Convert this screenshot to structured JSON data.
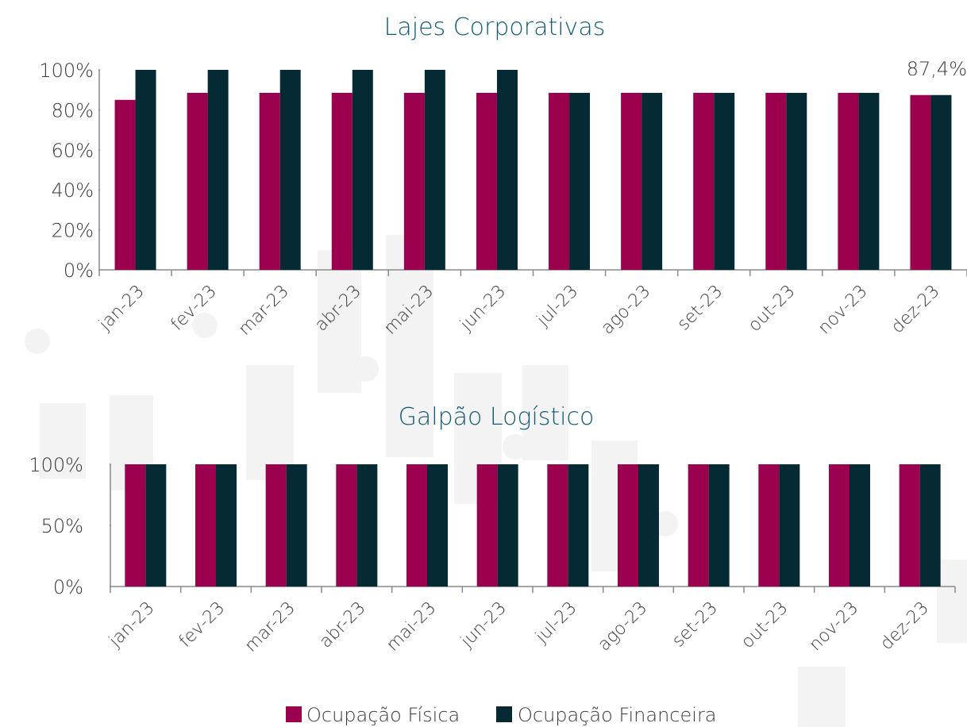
{
  "chart_data": [
    {
      "type": "bar",
      "title": "Lajes Corporativas",
      "categories": [
        "jan-23",
        "fev-23",
        "mar-23",
        "abr-23",
        "mai-23",
        "jun-23",
        "jul-23",
        "ago-23",
        "set-23",
        "out-23",
        "nov-23",
        "dez-23"
      ],
      "series": [
        {
          "name": "Ocupação Física",
          "color": "#9b004f",
          "values": [
            85,
            88.5,
            88.5,
            88.5,
            88.5,
            88.5,
            88.5,
            88.5,
            88.5,
            88.5,
            88.5,
            87.4
          ]
        },
        {
          "name": "Ocupação Financeira",
          "color": "#062a33",
          "values": [
            100,
            100,
            100,
            100,
            100,
            100,
            88.5,
            88.5,
            88.5,
            88.5,
            88.5,
            87.4
          ],
          "value_labels": [
            null,
            null,
            null,
            null,
            null,
            null,
            null,
            null,
            null,
            null,
            null,
            "87,4%"
          ]
        }
      ],
      "ylim": [
        0,
        100
      ],
      "yticks": [
        {
          "value": 0,
          "label": "0%"
        },
        {
          "value": 20,
          "label": "20%"
        },
        {
          "value": 40,
          "label": "40%"
        },
        {
          "value": 60,
          "label": "60%"
        },
        {
          "value": 80,
          "label": "80%"
        },
        {
          "value": 100,
          "label": "100%"
        }
      ]
    },
    {
      "type": "bar",
      "title": "Galpão Logístico",
      "categories": [
        "jan-23",
        "fev-23",
        "mar-23",
        "abr-23",
        "mai-23",
        "jun-23",
        "jul-23",
        "ago-23",
        "set-23",
        "out-23",
        "nov-23",
        "dez-23"
      ],
      "series": [
        {
          "name": "Ocupação Física",
          "color": "#9b004f",
          "values": [
            100,
            100,
            100,
            100,
            100,
            100,
            100,
            100,
            100,
            100,
            100,
            100
          ]
        },
        {
          "name": "Ocupação Financeira",
          "color": "#062a33",
          "values": [
            100,
            100,
            100,
            100,
            100,
            100,
            100,
            100,
            100,
            100,
            100,
            100
          ]
        }
      ],
      "ylim": [
        0,
        100
      ],
      "yticks": [
        {
          "value": 0,
          "label": "0%"
        },
        {
          "value": 50,
          "label": "50%"
        },
        {
          "value": 100,
          "label": "100%"
        }
      ]
    }
  ]
}
